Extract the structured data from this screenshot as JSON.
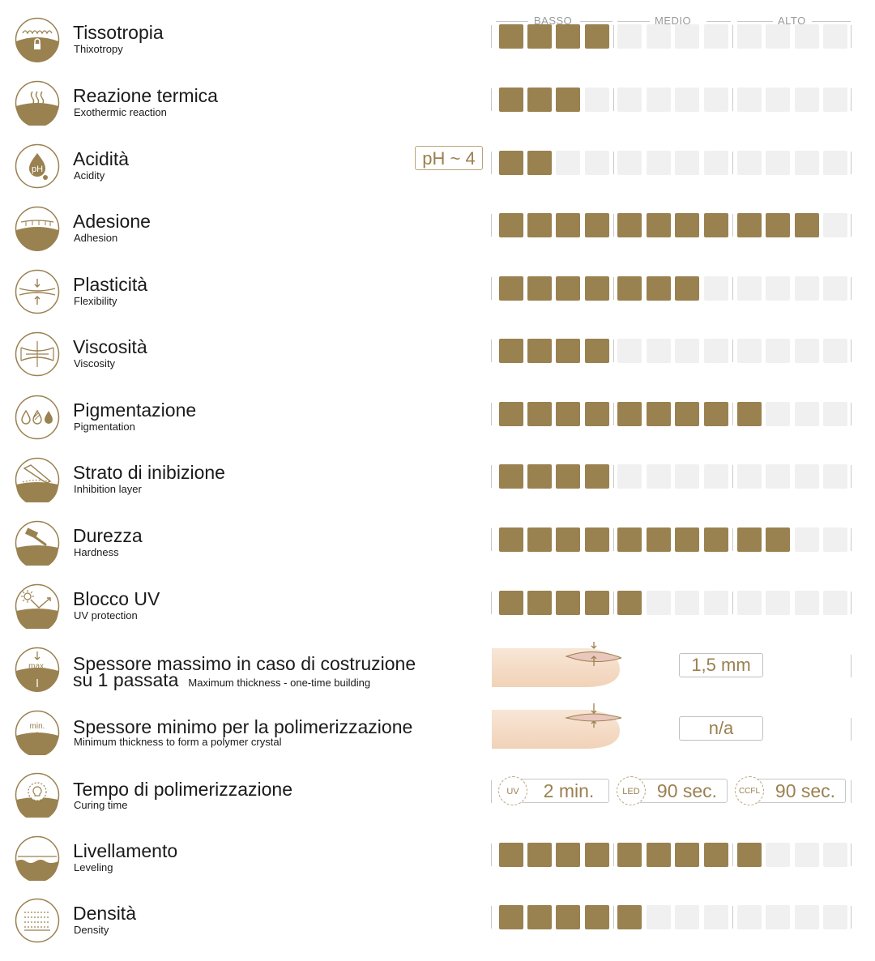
{
  "scale": {
    "low": "BASSO",
    "mid": "MEDIO",
    "high": "ALTO",
    "max_level": 12
  },
  "colors": {
    "accent": "#9a8150",
    "inactive": "#f0f0f0",
    "text": "#1a1a1a",
    "accent_text": "#9a8050"
  },
  "properties": [
    {
      "icon": "thixotropy-icon",
      "title": "Tissotropia",
      "subtitle": "Thixotropy",
      "level": 4
    },
    {
      "icon": "heat-icon",
      "title": "Reazione termica",
      "subtitle": "Exothermic reaction",
      "level": 3
    },
    {
      "icon": "ph-drop-icon",
      "title": "Acidità",
      "subtitle": "Acidity",
      "level": 2,
      "badge": "pH ~ 4"
    },
    {
      "icon": "adhesion-icon",
      "title": "Adesione",
      "subtitle": "Adhesion",
      "level": 11
    },
    {
      "icon": "flexibility-icon",
      "title": "Plasticità",
      "subtitle": "Flexibility",
      "level": 7
    },
    {
      "icon": "viscosity-icon",
      "title": "Viscosità",
      "subtitle": "Viscosity",
      "level": 4
    },
    {
      "icon": "pigment-drops-icon",
      "title": "Pigmentazione",
      "subtitle": "Pigmentation",
      "level": 9
    },
    {
      "icon": "inhibition-layer-icon",
      "title": "Strato di inibizione",
      "subtitle": "Inhibition layer",
      "level": 4
    },
    {
      "icon": "hammer-icon",
      "title": "Durezza",
      "subtitle": "Hardness",
      "level": 10
    },
    {
      "icon": "uv-sun-icon",
      "title": "Blocco UV",
      "subtitle": "UV protection",
      "level": 5
    }
  ],
  "thickness_max": {
    "icon": "max-thickness-icon",
    "icon_label": "max.",
    "title_line1": "Spessore massimo in caso di costruzione",
    "title_line2": "su 1 passata",
    "subtitle": "Maximum thickness - one-time building",
    "value": "1,5 mm"
  },
  "thickness_min": {
    "icon": "min-thickness-icon",
    "icon_label": "min.",
    "title": "Spessore minimo per la polimerizzazione",
    "subtitle": "Minimum thickness to form a polymer crystal",
    "value": "n/a"
  },
  "curing": {
    "icon": "lamp-icon",
    "title": "Tempo di polimerizzazione",
    "subtitle": "Curing time",
    "times": [
      {
        "lamp": "UV",
        "value": "2 min."
      },
      {
        "lamp": "LED",
        "value": "90 sec."
      },
      {
        "lamp": "CCFL",
        "value": "90 sec."
      }
    ]
  },
  "properties_bottom": [
    {
      "icon": "leveling-icon",
      "title": "Livellamento",
      "subtitle": "Leveling",
      "level": 9
    },
    {
      "icon": "density-icon",
      "title": "Densità",
      "subtitle": "Density",
      "level": 5
    }
  ]
}
